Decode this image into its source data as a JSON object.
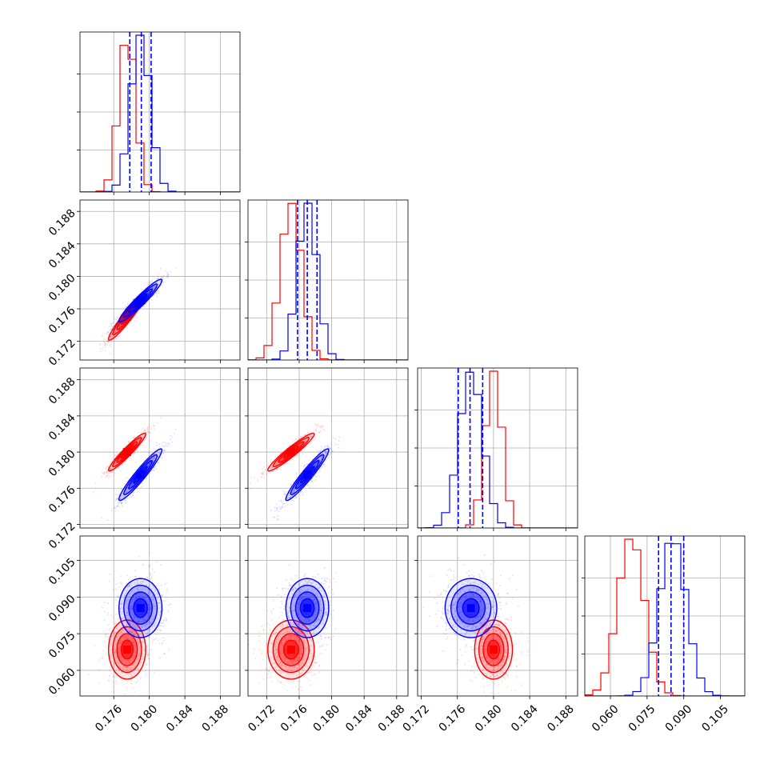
{
  "chart_data": {
    "type": "corner",
    "grid": true,
    "dimensions": [
      {
        "ticks": [
          0.176,
          0.18,
          0.184,
          0.188
        ],
        "tick_labels": [
          "0.176",
          "0.180",
          "0.184",
          "0.188"
        ],
        "range": [
          0.1722,
          0.1902
        ]
      },
      {
        "ticks": [
          0.172,
          0.176,
          0.18,
          0.184,
          0.188
        ],
        "tick_labels": [
          "0.172",
          "0.176",
          "0.180",
          "0.184",
          "0.188"
        ],
        "range": [
          0.1697,
          0.1894
        ]
      },
      {
        "ticks": [
          0.172,
          0.176,
          0.18,
          0.184,
          0.188
        ],
        "tick_labels": [
          "0.172",
          "0.176",
          "0.180",
          "0.184",
          "0.188"
        ],
        "range": [
          0.1716,
          0.1893
        ]
      },
      {
        "ticks": [
          0.06,
          0.075,
          0.09,
          0.105
        ],
        "tick_labels": [
          "0.060",
          "0.075",
          "0.090",
          "0.105"
        ],
        "range": [
          0.0495,
          0.115
        ]
      }
    ],
    "series": [
      {
        "color": "#ff0000",
        "mean": [
          0.1775,
          0.175,
          0.18,
          0.0685
        ],
        "std": [
          0.00095,
          0.0013,
          0.00095,
          0.0055
        ],
        "corr": {
          "1-0": 0.95,
          "2-0": 0.95,
          "2-1": 0.95,
          "3-0": 0.0,
          "3-1": 0.0,
          "3-2": 0.0
        }
      },
      {
        "color": "#0000ff",
        "mean": [
          0.179,
          0.177,
          0.1775,
          0.0855
        ],
        "std": [
          0.0011,
          0.0012,
          0.0013,
          0.0055
        ],
        "corr": {
          "1-0": 0.95,
          "2-0": 0.95,
          "2-1": 0.95,
          "3-0": 0.0,
          "3-1": 0.0,
          "3-2": 0.0
        },
        "quantiles": [
          [
            0.1778,
            0.1791,
            0.1802
          ],
          [
            0.1758,
            0.177,
            0.1782
          ],
          [
            0.1761,
            0.1774,
            0.1788
          ],
          [
            0.0797,
            0.0848,
            0.09
          ]
        ]
      }
    ]
  }
}
